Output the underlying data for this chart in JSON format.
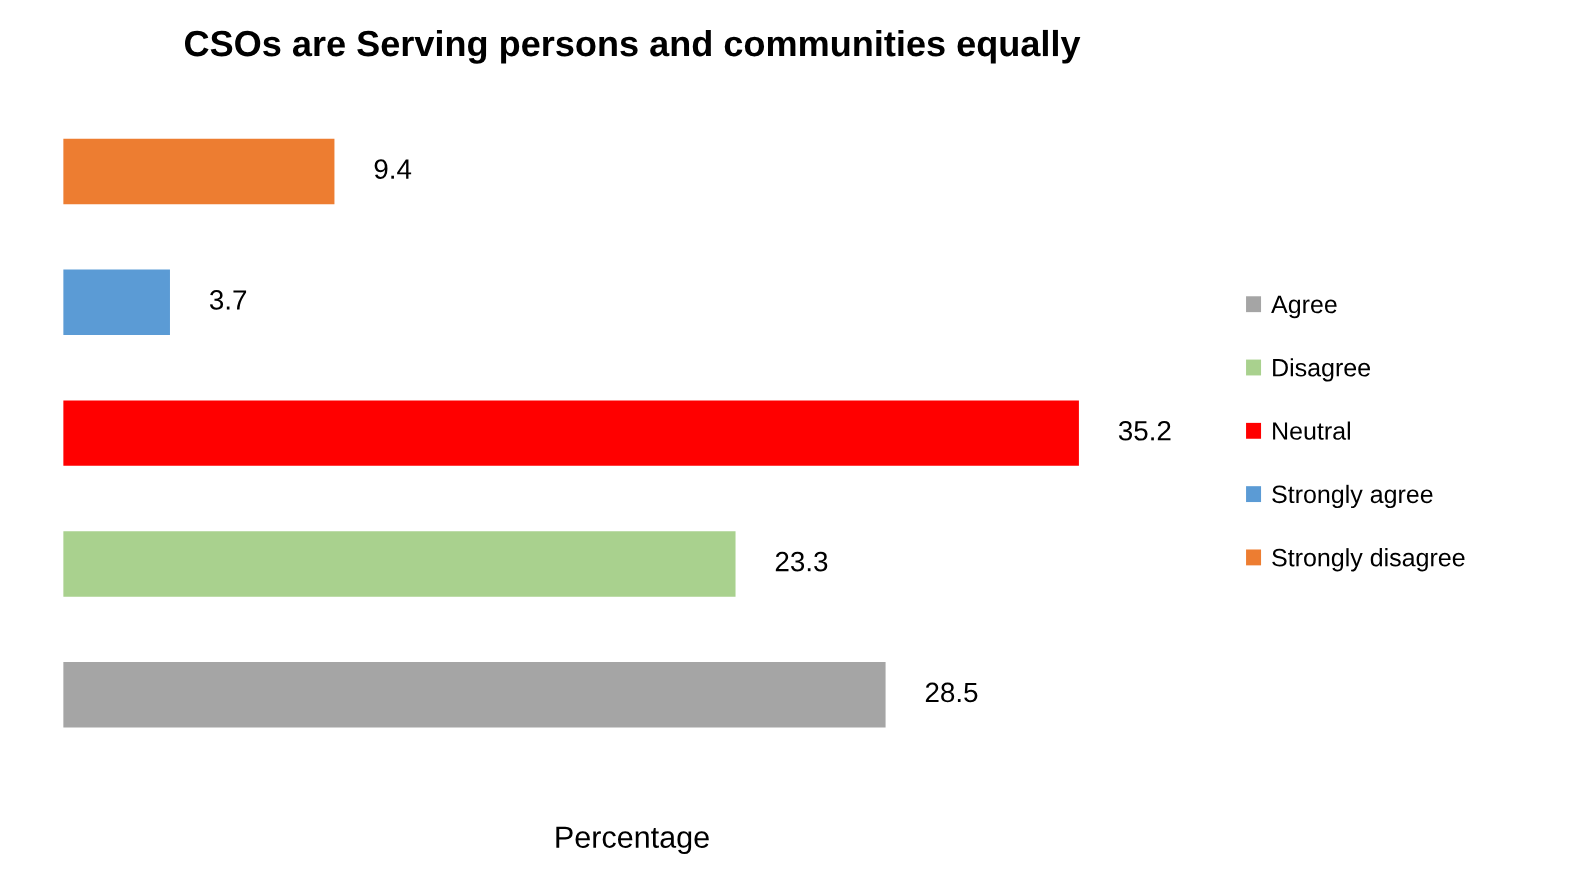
{
  "chart_data": {
    "type": "bar",
    "orientation": "horizontal",
    "stacked": true,
    "title": "CSOs are Serving persons and communities equally",
    "categories": [
      null,
      null,
      null,
      null,
      null
    ],
    "series": [
      {
        "name": "Agree",
        "color": "#a5a5a5",
        "values": [
          null,
          null,
          null,
          null,
          28.5
        ]
      },
      {
        "name": "Disagree",
        "color": "#a9d18e",
        "values": [
          null,
          null,
          null,
          23.3,
          null
        ]
      },
      {
        "name": "Neutral",
        "color": "#ff0000",
        "values": [
          null,
          null,
          35.2,
          null,
          null
        ]
      },
      {
        "name": "Strongly agree",
        "color": "#5b9bd5",
        "values": [
          null,
          3.7,
          null,
          null,
          null
        ]
      },
      {
        "name": "Strongly disagree",
        "color": "#ed7d31",
        "values": [
          9.4,
          null,
          null,
          null,
          null
        ]
      }
    ],
    "annotations": [
      "Percentage"
    ],
    "data_labels": true,
    "legend": "right",
    "tick_labels": false
  }
}
